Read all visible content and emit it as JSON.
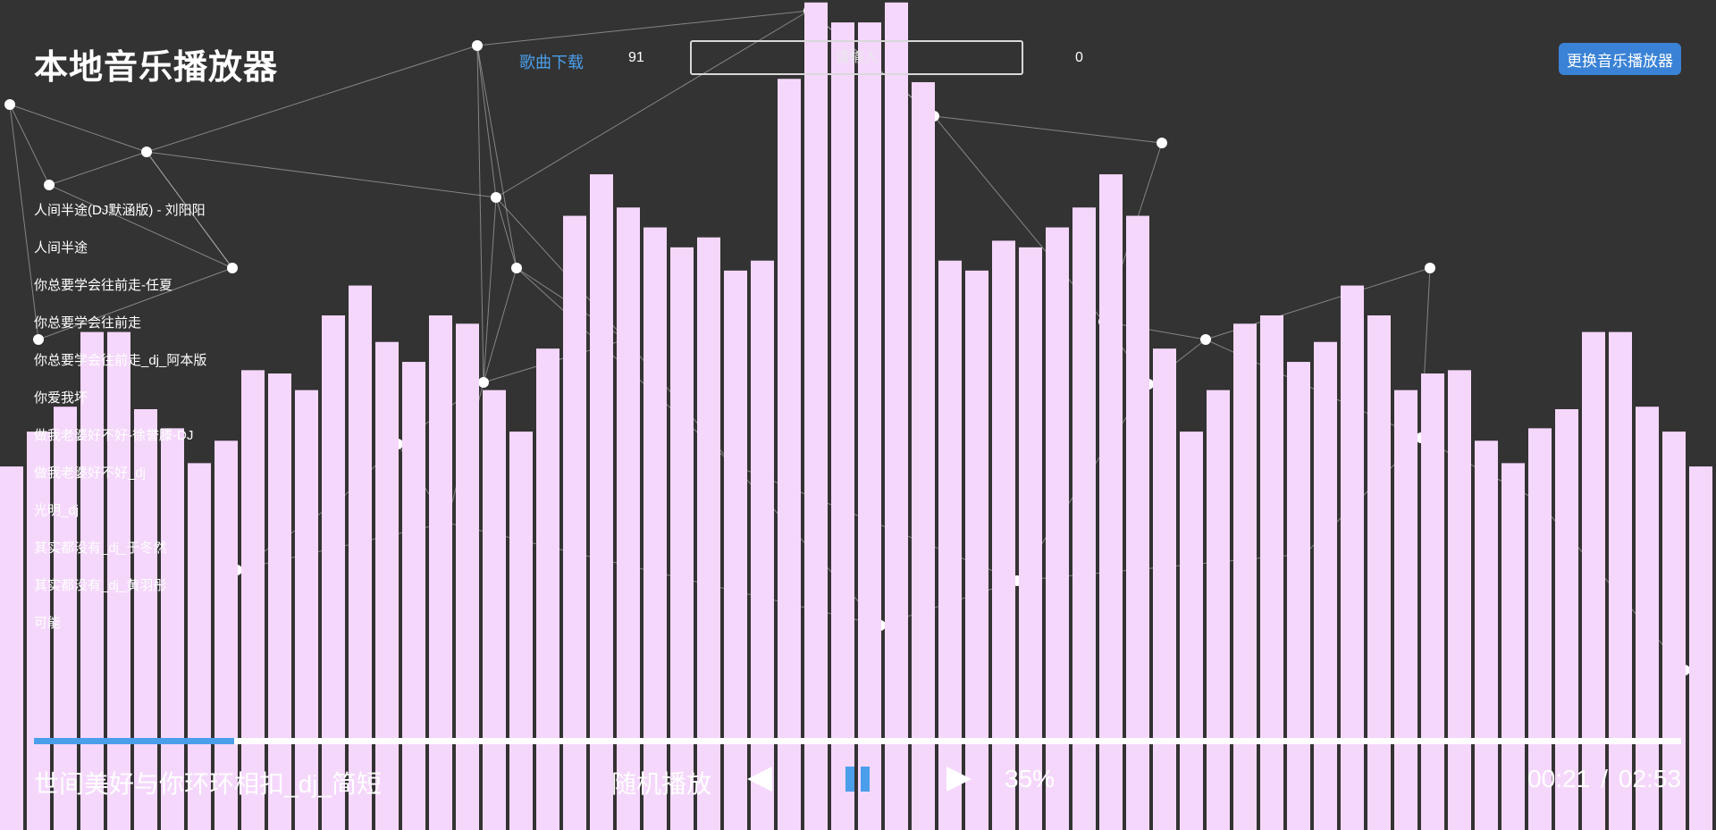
{
  "header": {
    "title": "本地音乐播放器",
    "download_label": "歌曲下载",
    "count_left": "91",
    "search_placeholder": "请输入",
    "count_right": "0",
    "switch_label": "更换音乐播放器"
  },
  "playlist": {
    "items": [
      "人间半途(DJ默涵版) - 刘阳阳",
      "人间半途",
      "你总要学会往前走-任夏",
      "你总要学会往前走",
      "你总要学会往前走_dj_阿本版",
      "你爱我坏",
      "做我老婆好不好-徐誉滕-DJ",
      "做我老婆好不好_dj",
      "光明_dj",
      "其实都没有_dj_于冬然",
      "其实都没有_dj_黄羽彤",
      "可能"
    ]
  },
  "player": {
    "now_playing": "世间美好与你环环相扣_dj_简短",
    "play_mode": "随机播放",
    "volume": "35%",
    "current_time": "00:21",
    "time_separator": "/",
    "duration": "02:53",
    "progress_fraction": 0.1214
  },
  "visualizer": {
    "bar_color": "#f5d7fc",
    "bar_levels": [
      0.438,
      0.48,
      0.51,
      0.6,
      0.6,
      0.507,
      0.484,
      0.442,
      0.469,
      0.554,
      0.55,
      0.53,
      0.62,
      0.656,
      0.588,
      0.564,
      0.62,
      0.61,
      0.53,
      0.48,
      0.58,
      0.74,
      0.79,
      0.75,
      0.726,
      0.702,
      0.714,
      0.674,
      0.686,
      0.905,
      0.997,
      0.973,
      0.973,
      0.997,
      0.901,
      0.686,
      0.674,
      0.71,
      0.702,
      0.726,
      0.75,
      0.79,
      0.74,
      0.58,
      0.48,
      0.53,
      0.61,
      0.62,
      0.564,
      0.588,
      0.656,
      0.62,
      0.53,
      0.55,
      0.554,
      0.469,
      0.442,
      0.484,
      0.507,
      0.6,
      0.6,
      0.51,
      0.48,
      0.438
    ]
  },
  "colors": {
    "background": "#333333",
    "accent": "#4a9eea",
    "button": "#3a82d6",
    "text": "#ffffff"
  }
}
